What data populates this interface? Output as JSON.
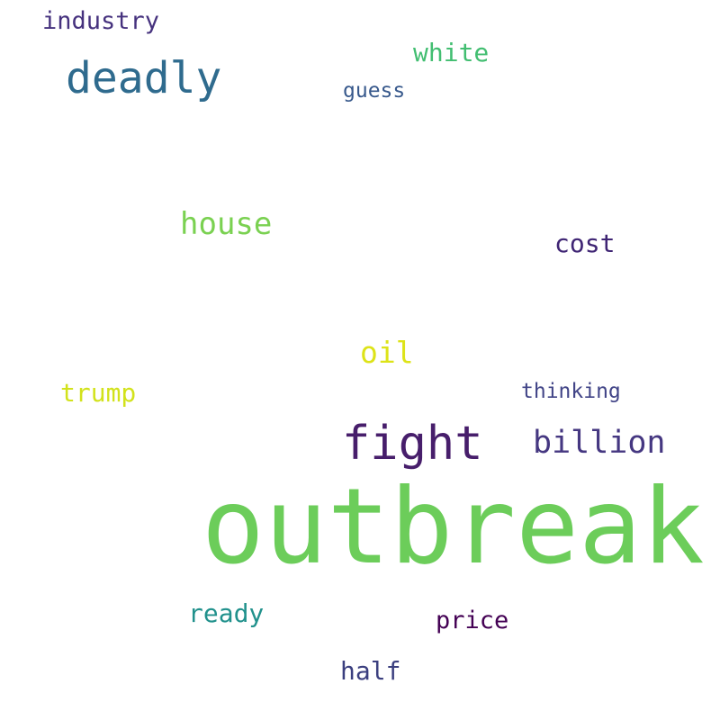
{
  "words": [
    {
      "id": "outbreak",
      "text": "outbreak",
      "color": "#6ccd5a"
    },
    {
      "id": "fight",
      "text": "fight",
      "color": "#471e6b"
    },
    {
      "id": "deadly",
      "text": "deadly",
      "color": "#2f6b8e"
    },
    {
      "id": "billion",
      "text": "billion",
      "color": "#453781"
    },
    {
      "id": "house",
      "text": "house",
      "color": "#7ad151"
    },
    {
      "id": "oil",
      "text": "oil",
      "color": "#dde318"
    },
    {
      "id": "trump",
      "text": "trump",
      "color": "#d2e21b"
    },
    {
      "id": "white",
      "text": "white",
      "color": "#42be71"
    },
    {
      "id": "cost",
      "text": "cost",
      "color": "#3f2574"
    },
    {
      "id": "industry",
      "text": "industry",
      "color": "#46327e"
    },
    {
      "id": "ready",
      "text": "ready",
      "color": "#21918c"
    },
    {
      "id": "price",
      "text": "price",
      "color": "#440154"
    },
    {
      "id": "half",
      "text": "half",
      "color": "#3b3f7f"
    },
    {
      "id": "guess",
      "text": "guess",
      "color": "#38598c"
    },
    {
      "id": "thinking",
      "text": "thinking",
      "color": "#414487"
    }
  ]
}
